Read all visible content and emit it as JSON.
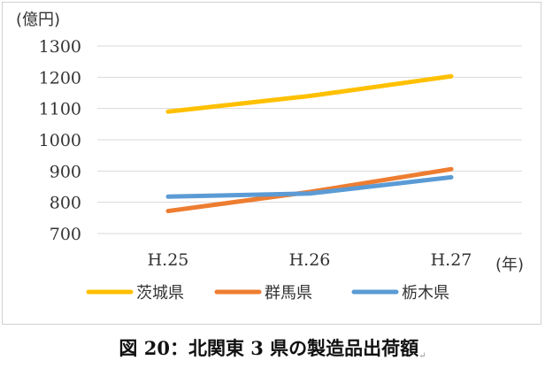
{
  "caption": "図 20：北関東 3 県の製造品出荷額",
  "caption_mark": "↵",
  "chart_data": {
    "type": "line",
    "categories": [
      "H.25",
      "H.26",
      "H.27"
    ],
    "y_unit": "(億円)",
    "x_unit": "(年)",
    "ylim": [
      700,
      1300
    ],
    "yticks": [
      700,
      800,
      900,
      1000,
      1100,
      1200,
      1300
    ],
    "grid": true,
    "legend_position": "bottom",
    "series": [
      {
        "name": "茨城県",
        "color": "#ffc000",
        "values": [
          1090,
          1140,
          1203
        ]
      },
      {
        "name": "群馬県",
        "color": "#ed7d31",
        "values": [
          772,
          833,
          906
        ]
      },
      {
        "name": "栃木県",
        "color": "#5b9bd5",
        "values": [
          818,
          828,
          880
        ]
      }
    ]
  }
}
